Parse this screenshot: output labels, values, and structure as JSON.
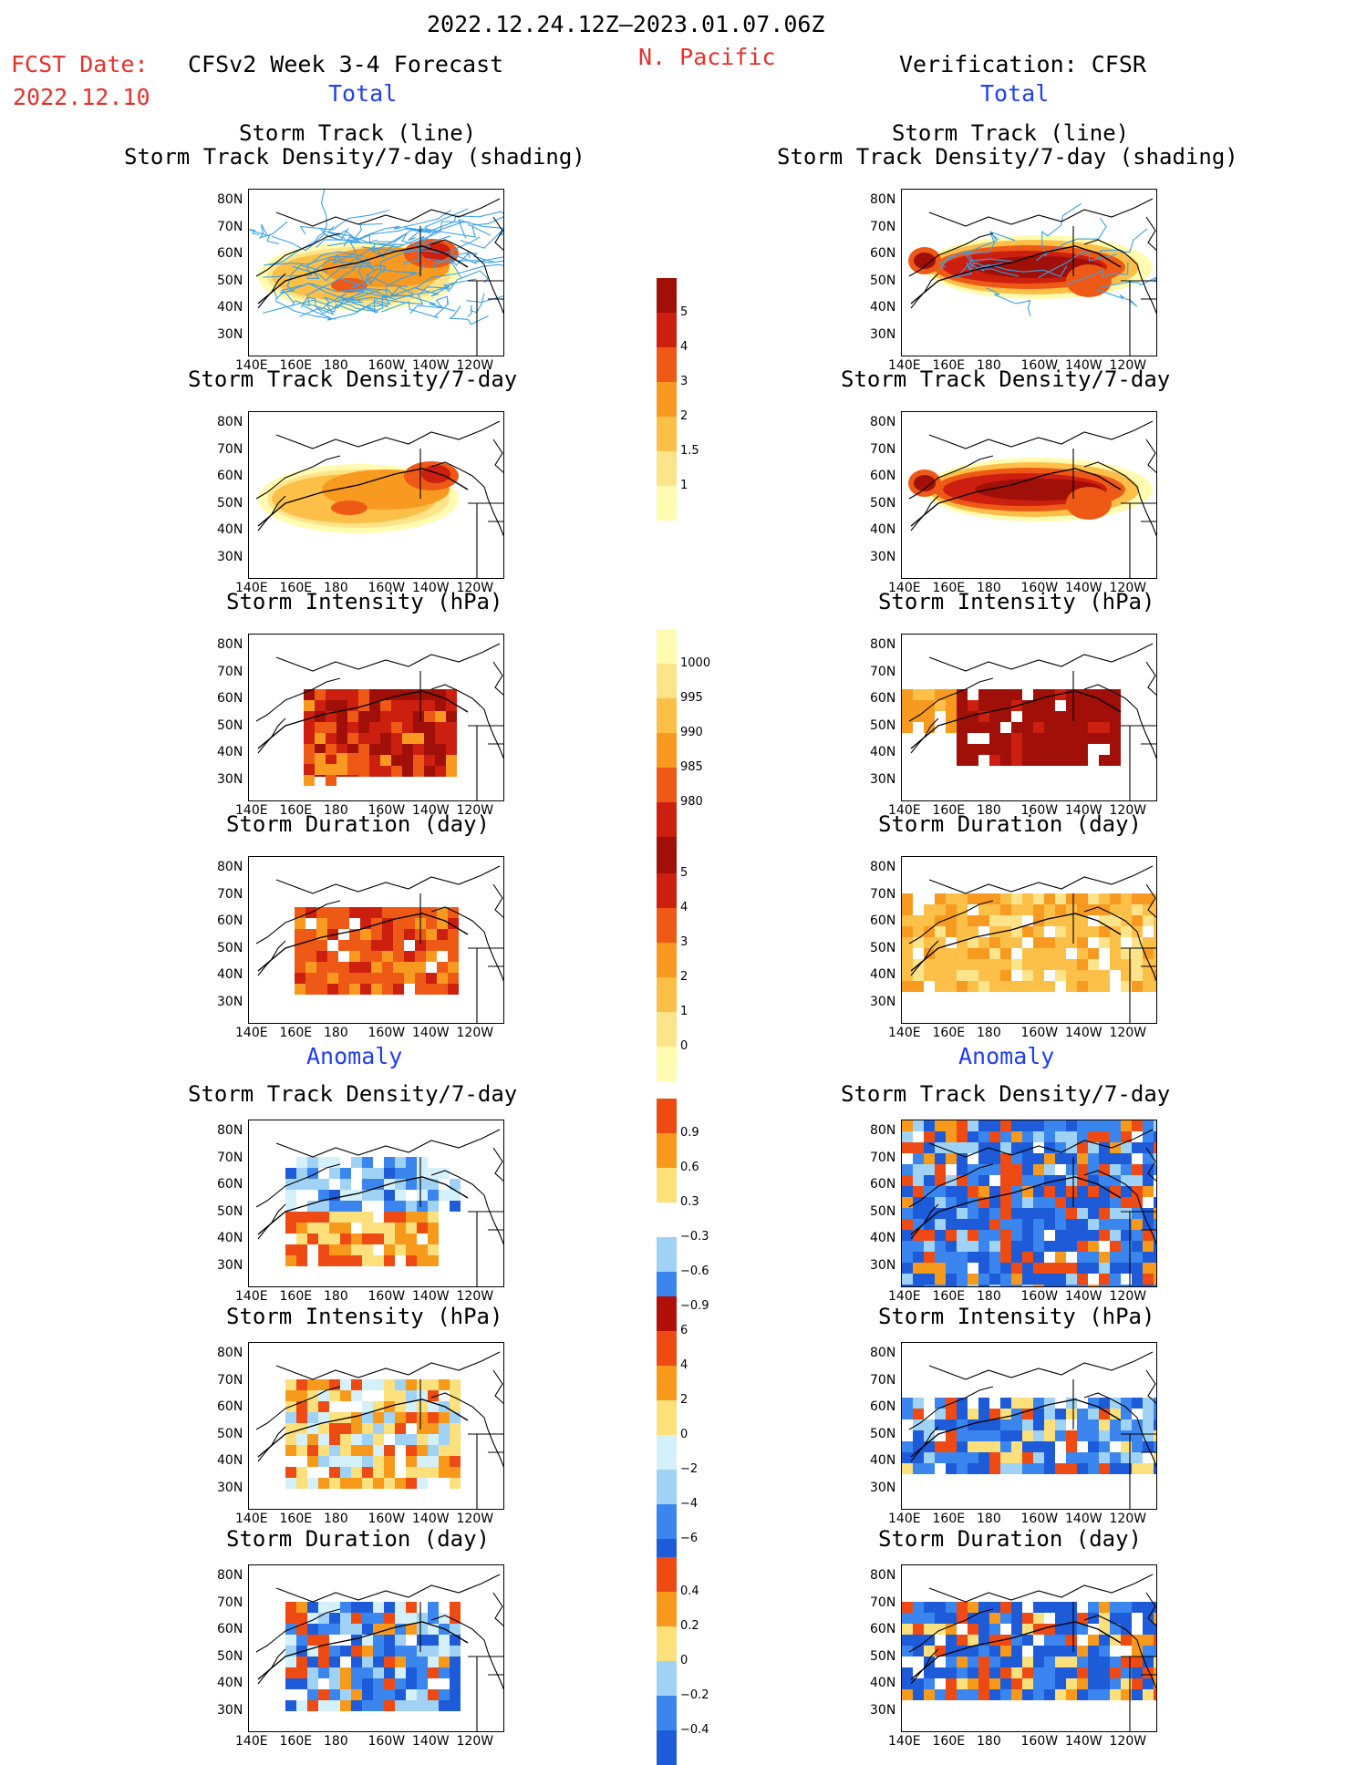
{
  "header": {
    "period": "2022.12.24.12Z–2023.01.07.06Z",
    "fcst_label": "FCST Date:",
    "fcst_date": "2022.12.10",
    "model": "CFSv2 Week 3-4 Forecast",
    "region": "N. Pacific",
    "verification": "Verification: CFSR",
    "total_left": "Total",
    "total_right": "Total",
    "anomaly_left": "Anomaly",
    "anomaly_right": "Anomaly"
  },
  "titles": {
    "track_line": "Storm Track (line)",
    "track_shading": "Storm Track Density/7-day (shading)",
    "density": "Storm Track Density/7-day",
    "intensity": "Storm Intensity (hPa)",
    "duration": "Storm Duration (day)"
  },
  "axes": {
    "lat": [
      "80N",
      "70N",
      "60N",
      "50N",
      "40N",
      "30N"
    ],
    "lon": [
      "140E",
      "160E",
      "180",
      "160W",
      "140W",
      "120W"
    ]
  },
  "colorbars": {
    "density_total": [
      "5",
      "4",
      "3",
      "2",
      "1.5",
      "1"
    ],
    "intensity_total": [
      "1000",
      "995",
      "990",
      "985",
      "980"
    ],
    "duration_total": [
      "5",
      "4",
      "3",
      "2",
      "1",
      "0"
    ],
    "density_anom": [
      "0.9",
      "0.6",
      "0.3",
      "−0.3",
      "−0.6",
      "−0.9"
    ],
    "intensity_anom": [
      "6",
      "4",
      "2",
      "0",
      "−2",
      "−4",
      "−6"
    ],
    "duration_anom": [
      "0.4",
      "0.2",
      "0",
      "−0.2",
      "−0.4"
    ]
  },
  "colors": {
    "warm_scale": [
      "#fffbb0",
      "#fde38a",
      "#fcc048",
      "#f89a20",
      "#ee5a16",
      "#cc1f10",
      "#a01008"
    ],
    "anom_scale": [
      "#1e5bd8",
      "#3a86ee",
      "#9fd2f4",
      "#d4f0fa",
      "#ffffff",
      "#fbe07c",
      "#f79a1c",
      "#ee4a14",
      "#b01008"
    ],
    "track_line": "#3aa0e8",
    "title_red": "#e8302a",
    "title_blue": "#1f3ff0"
  }
}
